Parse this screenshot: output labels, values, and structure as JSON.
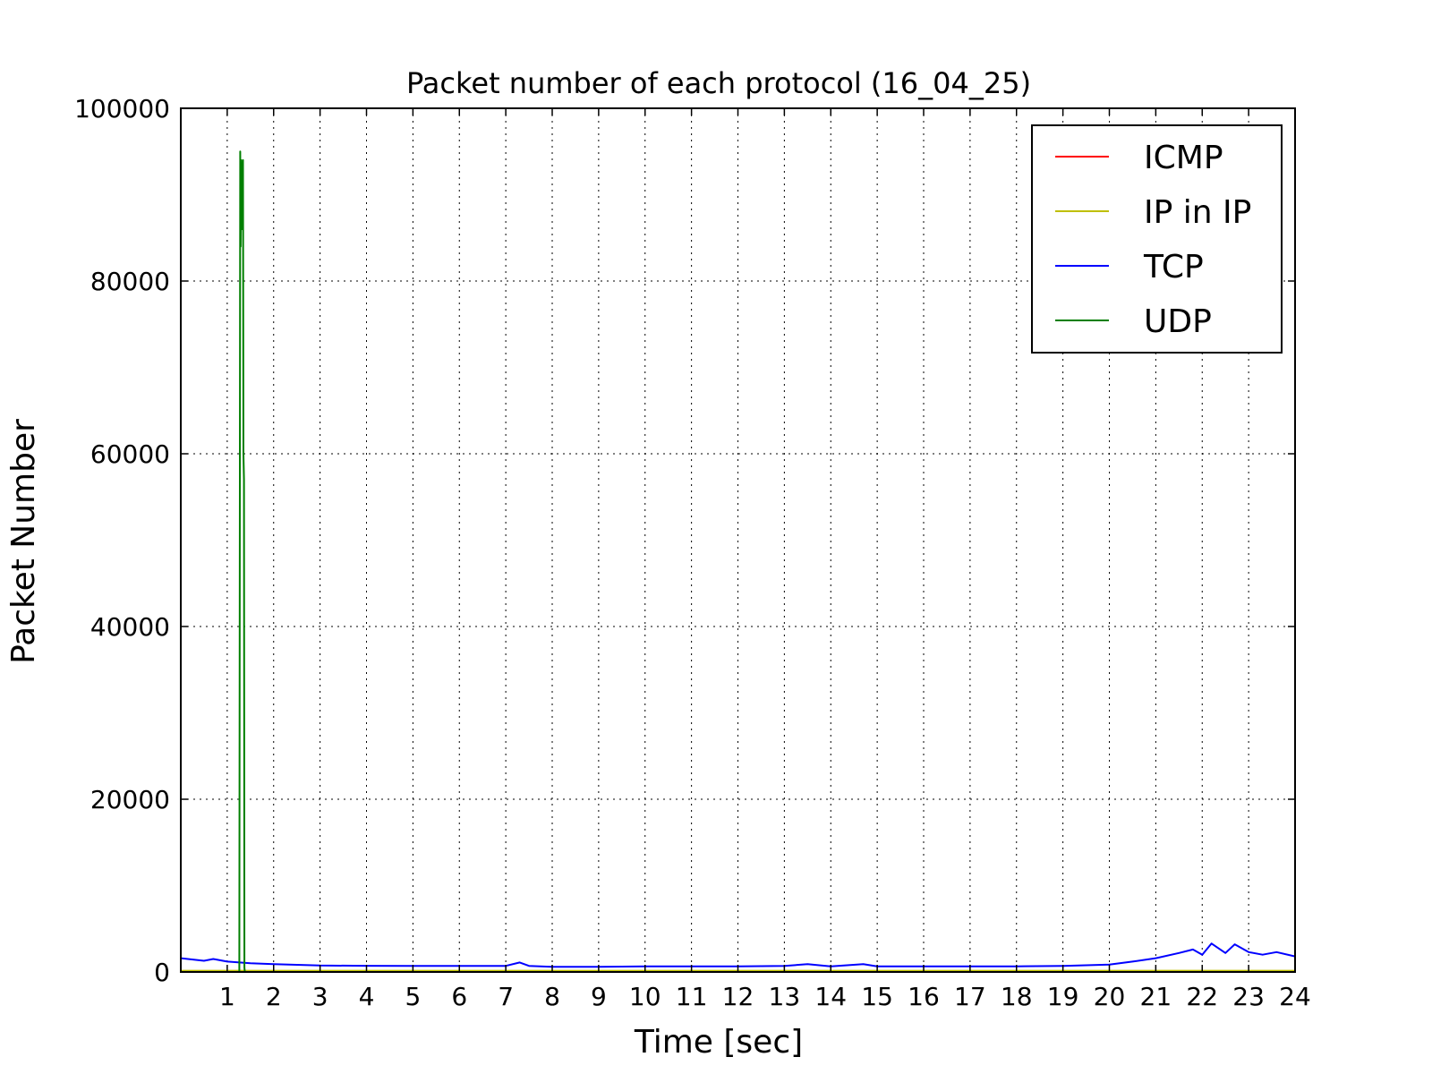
{
  "chart_data": {
    "type": "line",
    "title": "Packet number of each protocol (16_04_25)",
    "xlabel": "Time [sec]",
    "ylabel": "Packet Number",
    "xlim": [
      0,
      24
    ],
    "ylim": [
      0,
      100000
    ],
    "xticks": [
      1,
      2,
      3,
      4,
      5,
      6,
      7,
      8,
      9,
      10,
      11,
      12,
      13,
      14,
      15,
      16,
      17,
      18,
      19,
      20,
      21,
      22,
      23,
      24
    ],
    "yticks": [
      0,
      20000,
      40000,
      60000,
      80000,
      100000
    ],
    "grid": true,
    "legend_position": "top-right",
    "series": [
      {
        "name": "ICMP",
        "color": "#ff0000",
        "x": [
          0,
          24
        ],
        "y": [
          100,
          100
        ]
      },
      {
        "name": "IP in IP",
        "color": "#bfbf00",
        "x": [
          0,
          24
        ],
        "y": [
          150,
          150
        ]
      },
      {
        "name": "TCP",
        "color": "#0000ff",
        "x": [
          0,
          0.5,
          0.7,
          1,
          1.5,
          2,
          3,
          4,
          5,
          6,
          7,
          7.3,
          7.5,
          8,
          9,
          10,
          11,
          12,
          13,
          13.5,
          14,
          14.7,
          15,
          16,
          17,
          18,
          19,
          20,
          20.5,
          21,
          21.5,
          21.8,
          22,
          22.2,
          22.5,
          22.7,
          23,
          23.3,
          23.6,
          24
        ],
        "y": [
          1600,
          1300,
          1500,
          1200,
          1000,
          900,
          750,
          720,
          700,
          700,
          700,
          1100,
          700,
          600,
          600,
          650,
          650,
          650,
          700,
          900,
          650,
          900,
          650,
          650,
          650,
          650,
          700,
          850,
          1200,
          1600,
          2200,
          2600,
          2000,
          3300,
          2200,
          3200,
          2300,
          2000,
          2300,
          1800
        ]
      },
      {
        "name": "UDP",
        "color": "#007f00",
        "x": [
          0,
          1.26,
          1.28,
          1.29,
          1.3,
          1.31,
          1.32,
          1.33,
          1.34,
          1.35,
          1.36,
          1.37,
          1.38,
          1.4,
          1.42,
          24
        ],
        "y": [
          0,
          0,
          95000,
          84000,
          94000,
          86000,
          93500,
          92000,
          94000,
          60000,
          57000,
          500,
          0,
          0,
          0,
          0
        ]
      }
    ]
  }
}
